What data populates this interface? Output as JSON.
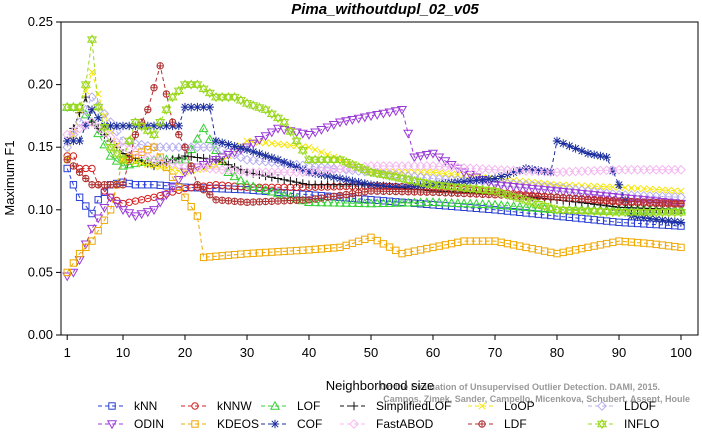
{
  "chart_data": {
    "type": "line",
    "title": "Pima_withoutdupl_02_v05",
    "xlabel": "Neighborhood size",
    "ylabel": "Maximum F1",
    "xlim": [
      0,
      100
    ],
    "ylim": [
      0,
      0.25
    ],
    "xticks": [
      1,
      10,
      20,
      30,
      40,
      50,
      60,
      70,
      80,
      90,
      100
    ],
    "yticks": [
      "0.00",
      "0.05",
      "0.10",
      "0.15",
      "0.20",
      "0.25"
    ],
    "grid": false,
    "legend_position": "bottom",
    "credit": [
      "Campos, Zimek, Sander, Campello, Micenkova, Schubert, Assent, Houle",
      "On the Evaluation of Unsupervised Outlier Detection. DAMI, 2015."
    ],
    "series": [
      {
        "name": "kNN",
        "color": "#2a3fd6",
        "marker": "square",
        "points": [
          [
            1,
            0.133
          ],
          [
            2,
            0.12
          ],
          [
            3,
            0.11
          ],
          [
            4,
            0.103
          ],
          [
            5,
            0.097
          ],
          [
            6,
            0.108
          ],
          [
            8,
            0.12
          ],
          [
            10,
            0.122
          ],
          [
            12,
            0.12
          ],
          [
            15,
            0.12
          ],
          [
            20,
            0.118
          ],
          [
            25,
            0.117
          ],
          [
            30,
            0.116
          ],
          [
            40,
            0.112
          ],
          [
            50,
            0.108
          ],
          [
            60,
            0.104
          ],
          [
            70,
            0.1
          ],
          [
            80,
            0.095
          ],
          [
            90,
            0.09
          ],
          [
            100,
            0.087
          ]
        ]
      },
      {
        "name": "kNNW",
        "color": "#d42020",
        "marker": "circle",
        "points": [
          [
            1,
            0.143
          ],
          [
            2,
            0.143
          ],
          [
            3,
            0.133
          ],
          [
            5,
            0.133
          ],
          [
            6,
            0.12
          ],
          [
            8,
            0.11
          ],
          [
            10,
            0.105
          ],
          [
            15,
            0.11
          ],
          [
            20,
            0.117
          ],
          [
            25,
            0.12
          ],
          [
            30,
            0.118
          ],
          [
            40,
            0.118
          ],
          [
            50,
            0.119
          ],
          [
            60,
            0.118
          ],
          [
            70,
            0.114
          ],
          [
            80,
            0.11
          ],
          [
            90,
            0.106
          ],
          [
            100,
            0.104
          ]
        ]
      },
      {
        "name": "LOF",
        "color": "#35d035",
        "marker": "triangle",
        "points": [
          [
            1,
            0.182
          ],
          [
            3,
            0.182
          ],
          [
            5,
            0.17
          ],
          [
            8,
            0.143
          ],
          [
            10,
            0.135
          ],
          [
            15,
            0.14
          ],
          [
            20,
            0.14
          ],
          [
            23,
            0.165
          ],
          [
            27,
            0.13
          ],
          [
            30,
            0.12
          ],
          [
            40,
            0.106
          ],
          [
            50,
            0.105
          ],
          [
            60,
            0.106
          ],
          [
            70,
            0.104
          ],
          [
            80,
            0.1
          ],
          [
            90,
            0.1
          ],
          [
            100,
            0.1
          ]
        ]
      },
      {
        "name": "SimplifiedLOF",
        "color": "#111111",
        "marker": "plus",
        "points": [
          [
            1,
            0.155
          ],
          [
            2,
            0.165
          ],
          [
            4,
            0.19
          ],
          [
            5,
            0.17
          ],
          [
            8,
            0.155
          ],
          [
            10,
            0.145
          ],
          [
            15,
            0.135
          ],
          [
            20,
            0.143
          ],
          [
            25,
            0.14
          ],
          [
            30,
            0.13
          ],
          [
            35,
            0.125
          ],
          [
            40,
            0.12
          ],
          [
            50,
            0.12
          ],
          [
            60,
            0.115
          ],
          [
            70,
            0.113
          ],
          [
            80,
            0.108
          ],
          [
            90,
            0.102
          ],
          [
            100,
            0.1
          ]
        ]
      },
      {
        "name": "LoOP",
        "color": "#f5e60a",
        "marker": "cross",
        "points": [
          [
            1,
            0.14
          ],
          [
            3,
            0.18
          ],
          [
            5,
            0.21
          ],
          [
            7,
            0.175
          ],
          [
            10,
            0.14
          ],
          [
            15,
            0.135
          ],
          [
            20,
            0.13
          ],
          [
            25,
            0.135
          ],
          [
            30,
            0.155
          ],
          [
            40,
            0.15
          ],
          [
            50,
            0.13
          ],
          [
            60,
            0.13
          ],
          [
            70,
            0.125
          ],
          [
            80,
            0.12
          ],
          [
            90,
            0.118
          ],
          [
            100,
            0.115
          ]
        ]
      },
      {
        "name": "LDOF",
        "color": "#b8b0f0",
        "marker": "diamond",
        "points": [
          [
            1,
            0.15
          ],
          [
            3,
            0.17
          ],
          [
            5,
            0.19
          ],
          [
            8,
            0.17
          ],
          [
            10,
            0.155
          ],
          [
            15,
            0.15
          ],
          [
            20,
            0.15
          ],
          [
            25,
            0.15
          ],
          [
            30,
            0.14
          ],
          [
            40,
            0.135
          ],
          [
            50,
            0.13
          ],
          [
            60,
            0.125
          ],
          [
            70,
            0.122
          ],
          [
            80,
            0.118
          ],
          [
            90,
            0.112
          ],
          [
            100,
            0.11
          ]
        ]
      },
      {
        "name": "ODIN",
        "color": "#9b3bd6",
        "marker": "triangle-down",
        "points": [
          [
            1,
            0.047
          ],
          [
            2,
            0.05
          ],
          [
            3,
            0.06
          ],
          [
            5,
            0.085
          ],
          [
            8,
            0.11
          ],
          [
            10,
            0.1
          ],
          [
            12,
            0.095
          ],
          [
            15,
            0.1
          ],
          [
            20,
            0.13
          ],
          [
            25,
            0.14
          ],
          [
            30,
            0.15
          ],
          [
            35,
            0.165
          ],
          [
            40,
            0.16
          ],
          [
            45,
            0.17
          ],
          [
            50,
            0.175
          ],
          [
            55,
            0.18
          ],
          [
            57,
            0.142
          ],
          [
            60,
            0.145
          ],
          [
            65,
            0.13
          ],
          [
            70,
            0.12
          ],
          [
            80,
            0.115
          ],
          [
            90,
            0.11
          ],
          [
            100,
            0.105
          ]
        ]
      },
      {
        "name": "KDEOS",
        "color": "#f0a800",
        "marker": "square",
        "points": [
          [
            1,
            0.05
          ],
          [
            3,
            0.065
          ],
          [
            5,
            0.075
          ],
          [
            8,
            0.1
          ],
          [
            10,
            0.14
          ],
          [
            15,
            0.15
          ],
          [
            20,
            0.11
          ],
          [
            22,
            0.095
          ],
          [
            23,
            0.062
          ],
          [
            30,
            0.065
          ],
          [
            40,
            0.068
          ],
          [
            45,
            0.07
          ],
          [
            50,
            0.078
          ],
          [
            55,
            0.065
          ],
          [
            60,
            0.07
          ],
          [
            65,
            0.075
          ],
          [
            70,
            0.075
          ],
          [
            75,
            0.07
          ],
          [
            80,
            0.065
          ],
          [
            85,
            0.07
          ],
          [
            90,
            0.075
          ],
          [
            95,
            0.073
          ],
          [
            100,
            0.07
          ]
        ]
      },
      {
        "name": "COF",
        "color": "#1a2d9e",
        "marker": "star",
        "points": [
          [
            1,
            0.155
          ],
          [
            3,
            0.155
          ],
          [
            5,
            0.18
          ],
          [
            7,
            0.167
          ],
          [
            10,
            0.167
          ],
          [
            15,
            0.167
          ],
          [
            19,
            0.167
          ],
          [
            20,
            0.182
          ],
          [
            24,
            0.182
          ],
          [
            25,
            0.155
          ],
          [
            30,
            0.148
          ],
          [
            35,
            0.14
          ],
          [
            40,
            0.13
          ],
          [
            45,
            0.125
          ],
          [
            50,
            0.12
          ],
          [
            55,
            0.118
          ],
          [
            60,
            0.12
          ],
          [
            70,
            0.125
          ],
          [
            75,
            0.133
          ],
          [
            79,
            0.13
          ],
          [
            80,
            0.155
          ],
          [
            85,
            0.145
          ],
          [
            88,
            0.142
          ],
          [
            90,
            0.12
          ],
          [
            92,
            0.095
          ],
          [
            95,
            0.093
          ],
          [
            100,
            0.09
          ]
        ]
      },
      {
        "name": "FastABOD",
        "color": "#f4b8f0",
        "marker": "diamond",
        "points": [
          [
            1,
            0.16
          ],
          [
            5,
            0.17
          ],
          [
            10,
            0.15
          ],
          [
            15,
            0.14
          ],
          [
            20,
            0.135
          ],
          [
            30,
            0.13
          ],
          [
            40,
            0.13
          ],
          [
            50,
            0.135
          ],
          [
            60,
            0.135
          ],
          [
            70,
            0.132
          ],
          [
            80,
            0.13
          ],
          [
            90,
            0.132
          ],
          [
            100,
            0.132
          ]
        ]
      },
      {
        "name": "LDF",
        "color": "#b03030",
        "marker": "circle-plus",
        "points": [
          [
            1,
            0.14
          ],
          [
            3,
            0.13
          ],
          [
            5,
            0.12
          ],
          [
            8,
            0.12
          ],
          [
            10,
            0.12
          ],
          [
            12,
            0.16
          ],
          [
            14,
            0.18
          ],
          [
            16,
            0.215
          ],
          [
            18,
            0.17
          ],
          [
            20,
            0.15
          ],
          [
            22,
            0.12
          ],
          [
            25,
            0.108
          ],
          [
            30,
            0.106
          ],
          [
            40,
            0.108
          ],
          [
            50,
            0.115
          ],
          [
            60,
            0.114
          ],
          [
            70,
            0.112
          ],
          [
            80,
            0.11
          ],
          [
            90,
            0.107
          ],
          [
            100,
            0.105
          ]
        ]
      },
      {
        "name": "INFLO",
        "color": "#9ad820",
        "marker": "hexagram",
        "points": [
          [
            1,
            0.182
          ],
          [
            3,
            0.182
          ],
          [
            4,
            0.2
          ],
          [
            5,
            0.236
          ],
          [
            6,
            0.182
          ],
          [
            8,
            0.15
          ],
          [
            10,
            0.14
          ],
          [
            12,
            0.17
          ],
          [
            15,
            0.16
          ],
          [
            18,
            0.19
          ],
          [
            20,
            0.2
          ],
          [
            22,
            0.2
          ],
          [
            25,
            0.19
          ],
          [
            28,
            0.19
          ],
          [
            30,
            0.185
          ],
          [
            33,
            0.18
          ],
          [
            36,
            0.17
          ],
          [
            40,
            0.14
          ],
          [
            45,
            0.14
          ],
          [
            50,
            0.13
          ],
          [
            60,
            0.12
          ],
          [
            70,
            0.115
          ],
          [
            80,
            0.1
          ],
          [
            90,
            0.098
          ],
          [
            100,
            0.098
          ]
        ]
      }
    ]
  }
}
